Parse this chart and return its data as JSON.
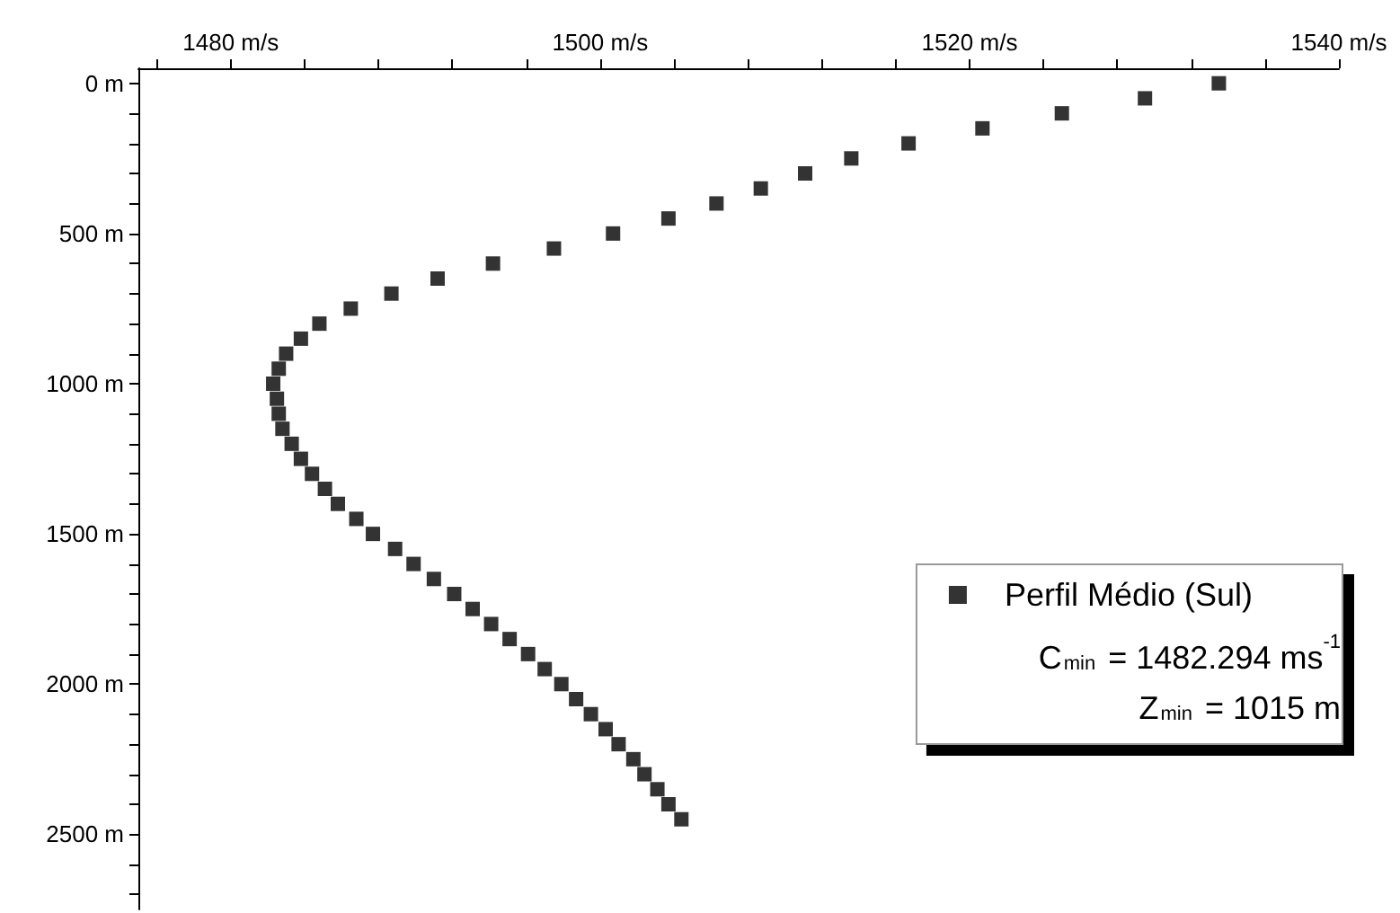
{
  "chart_data": {
    "type": "scatter",
    "marker": "square",
    "grid": false,
    "legend": "bottom right",
    "x": [
      1533.5,
      1529.5,
      1525.0,
      1520.7,
      1516.7,
      1513.6,
      1511.1,
      1508.7,
      1506.3,
      1503.7,
      1500.7,
      1497.5,
      1494.2,
      1491.2,
      1488.7,
      1486.5,
      1484.8,
      1483.8,
      1483.0,
      1482.6,
      1482.3,
      1482.5,
      1482.6,
      1482.8,
      1483.3,
      1483.8,
      1484.4,
      1485.1,
      1485.8,
      1486.8,
      1487.7,
      1488.9,
      1489.9,
      1491.0,
      1492.1,
      1493.1,
      1494.1,
      1495.1,
      1496.1,
      1497.0,
      1497.9,
      1498.7,
      1499.5,
      1500.3,
      1501.0,
      1501.8,
      1502.4,
      1503.1,
      1503.7,
      1504.4
    ],
    "series": [
      {
        "name": "Perfil Médio (Sul)",
        "color": "#000000",
        "values": [
          0,
          50,
          100,
          150,
          200,
          250,
          300,
          350,
          400,
          450,
          500,
          550,
          600,
          650,
          700,
          750,
          800,
          850,
          900,
          950,
          1000,
          1050,
          1100,
          1150,
          1200,
          1250,
          1300,
          1350,
          1400,
          1450,
          1500,
          1550,
          1600,
          1650,
          1700,
          1750,
          1800,
          1850,
          1900,
          1950,
          2000,
          2050,
          2100,
          2150,
          2200,
          2250,
          2300,
          2350,
          2400,
          2450
        ]
      }
    ],
    "xlim": [
      1475,
      1540
    ],
    "xticks": [
      {
        "value": 1476,
        "label": null
      },
      {
        "value": 1480,
        "label": "1480 m/s"
      },
      {
        "value": 1484,
        "label": null
      },
      {
        "value": 1488,
        "label": null
      },
      {
        "value": 1492,
        "label": null
      },
      {
        "value": 1496,
        "label": null
      },
      {
        "value": 1500,
        "label": "1500 m/s"
      },
      {
        "value": 1504,
        "label": null
      },
      {
        "value": 1508,
        "label": null
      },
      {
        "value": 1512,
        "label": null
      },
      {
        "value": 1516,
        "label": null
      },
      {
        "value": 1520,
        "label": "1520 m/s"
      },
      {
        "value": 1524,
        "label": null
      },
      {
        "value": 1528,
        "label": null
      },
      {
        "value": 1532,
        "label": null
      },
      {
        "value": 1536,
        "label": null
      },
      {
        "value": 1540,
        "label": "1540 m/s"
      }
    ],
    "ylim": [
      2750,
      -50
    ],
    "yticks": [
      {
        "value": 0,
        "label": "0 m"
      },
      {
        "value": 100,
        "label": null
      },
      {
        "value": 200,
        "label": null
      },
      {
        "value": 300,
        "label": null
      },
      {
        "value": 400,
        "label": null
      },
      {
        "value": 500,
        "label": "500 m"
      },
      {
        "value": 600,
        "label": null
      },
      {
        "value": 700,
        "label": null
      },
      {
        "value": 800,
        "label": null
      },
      {
        "value": 900,
        "label": null
      },
      {
        "value": 1000,
        "label": "1000 m"
      },
      {
        "value": 1100,
        "label": null
      },
      {
        "value": 1200,
        "label": null
      },
      {
        "value": 1300,
        "label": null
      },
      {
        "value": 1400,
        "label": null
      },
      {
        "value": 1500,
        "label": "1500 m"
      },
      {
        "value": 1600,
        "label": null
      },
      {
        "value": 1700,
        "label": null
      },
      {
        "value": 1800,
        "label": null
      },
      {
        "value": 1900,
        "label": null
      },
      {
        "value": 2000,
        "label": "2000 m"
      },
      {
        "value": 2100,
        "label": null
      },
      {
        "value": 2200,
        "label": null
      },
      {
        "value": 2300,
        "label": null
      },
      {
        "value": 2400,
        "label": null
      },
      {
        "value": 2500,
        "label": "2500 m"
      },
      {
        "value": 2600,
        "label": null
      },
      {
        "value": 2700,
        "label": null
      }
    ],
    "annotations": [
      "C$_{min}$ = 1482.294 ms$^{-1}$",
      "Z$_{min}$ = 1015 m"
    ]
  }
}
